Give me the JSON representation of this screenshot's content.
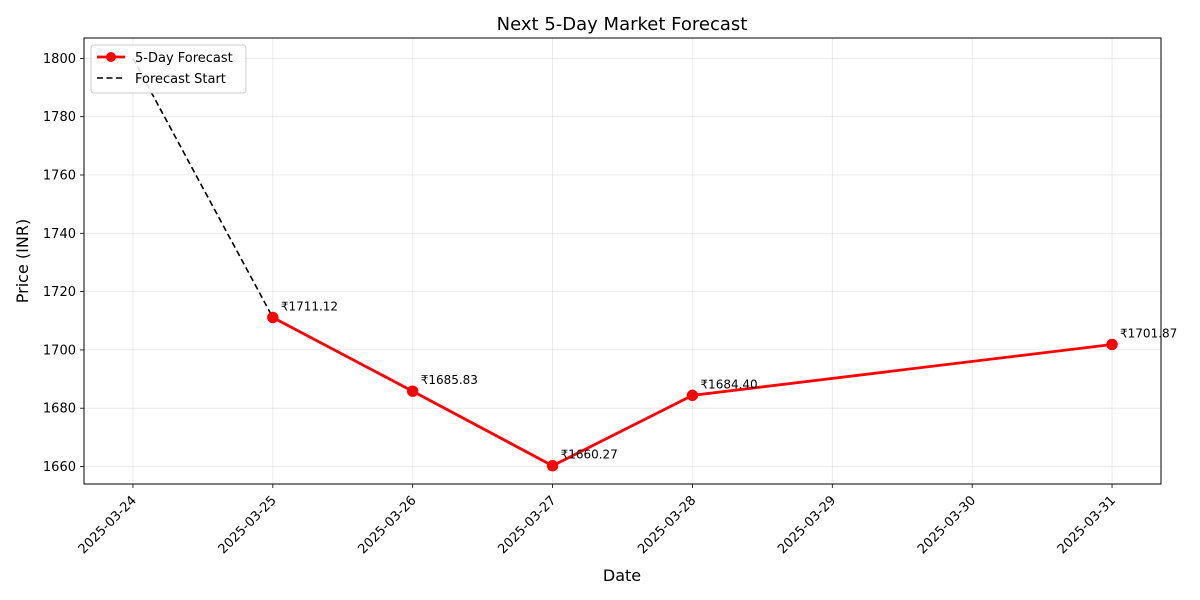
{
  "chart_data": {
    "type": "line",
    "title": "Next 5-Day Market Forecast",
    "xlabel": "Date",
    "ylabel": "Price (INR)",
    "x_ticks": [
      "2025-03-24",
      "2025-03-25",
      "2025-03-26",
      "2025-03-27",
      "2025-03-28",
      "2025-03-29",
      "2025-03-30",
      "2025-03-31"
    ],
    "xlim": [
      "2025-03-24",
      "2025-03-31"
    ],
    "ylim": [
      1654,
      1807
    ],
    "y_ticks": [
      1660,
      1680,
      1700,
      1720,
      1740,
      1760,
      1780,
      1800
    ],
    "grid": true,
    "legend_position": "top-left",
    "series": [
      {
        "name": "5-Day Forecast",
        "style": "solid-markers",
        "color": "#ff0000",
        "points": [
          {
            "x": "2025-03-25",
            "y": 1711.12
          },
          {
            "x": "2025-03-26",
            "y": 1685.83
          },
          {
            "x": "2025-03-27",
            "y": 1660.27
          },
          {
            "x": "2025-03-28",
            "y": 1684.4
          },
          {
            "x": "2025-03-31",
            "y": 1701.87
          }
        ],
        "labels": [
          "₹1711.12",
          "₹1685.83",
          "₹1660.27",
          "₹1684.40",
          "₹1701.87"
        ]
      },
      {
        "name": "Forecast Start",
        "style": "dashed",
        "color": "#000000",
        "points": [
          {
            "x": "2025-03-24",
            "y": 1800
          },
          {
            "x": "2025-03-25",
            "y": 1711.12
          }
        ]
      }
    ]
  }
}
